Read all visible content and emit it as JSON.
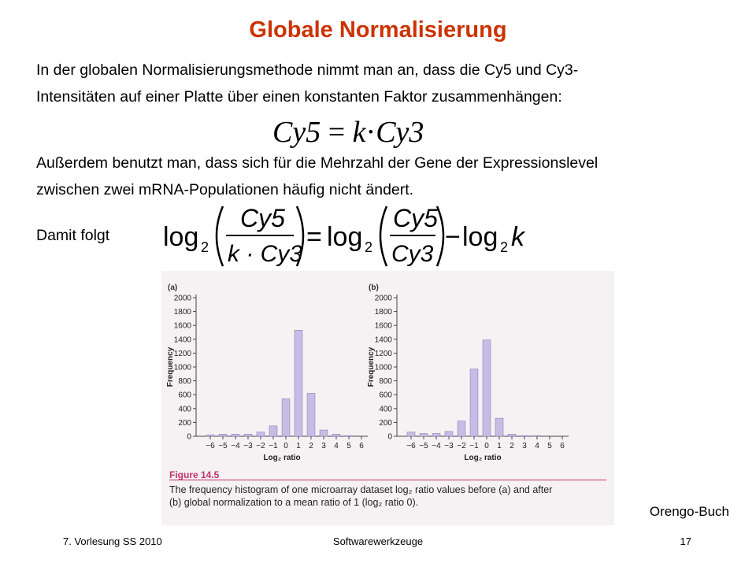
{
  "slide": {
    "title": "Globale Normalisierung",
    "paragraph1_line1": "In der globalen Normalisierungsmethode  nimmt man an, dass die Cy5 und Cy3-",
    "paragraph1_line2": "Intensitäten auf einer Platte über einen konstanten Faktor zusammenhängen:",
    "paragraph2_line1": "Außerdem benutzt man, dass sich für die Mehrzahl der Gene der Expressionslevel",
    "paragraph2_line2": "zwischen zwei mRNA-Populationen häufig nicht ändert.",
    "damit": "Damit folgt",
    "source": "Orengo-Buch"
  },
  "formula1": {
    "lhs": "Cy5",
    "equals": "=",
    "rhs_k": "k",
    "dot": "·",
    "rhs_cy3": "Cy3"
  },
  "formula2": {
    "log": "log",
    "sub2": "2",
    "num": "Cy5",
    "den1": "k · Cy3",
    "den2": "Cy3",
    "equals": "=",
    "minus": "−",
    "k": "k"
  },
  "figure": {
    "title": "Figure 14.5",
    "caption_line1": "The frequency histogram of one microarray dataset log₂ ratio values before (a) and after",
    "caption_line2": "(b) global normalization to a mean ratio of 1 (log₂ ratio 0)."
  },
  "footer": {
    "left": "7. Vorlesung SS 2010",
    "center": "Softwarewerkzeuge",
    "right": "17"
  },
  "chart_data": [
    {
      "type": "bar",
      "panel_label": "(a)",
      "categories": [
        "−6",
        "−5",
        "−4",
        "−3",
        "−2",
        "−1",
        "0",
        "1",
        "2",
        "3",
        "4",
        "5",
        "6"
      ],
      "values": [
        20,
        30,
        30,
        30,
        60,
        150,
        540,
        1530,
        620,
        90,
        30,
        10,
        0
      ],
      "ylabel": "Frequency",
      "xlabel": "Log₂ ratio",
      "yticks": [
        "0",
        "200",
        "400",
        "600",
        "800",
        "1000",
        "1200",
        "1400",
        "1600",
        "1800",
        "2000"
      ],
      "ylim": [
        0,
        2000
      ],
      "bar_color": "#c6bde6"
    },
    {
      "type": "bar",
      "panel_label": "(b)",
      "categories": [
        "−6",
        "−5",
        "−4",
        "−3",
        "−2",
        "−1",
        "0",
        "1",
        "2",
        "3",
        "4",
        "5",
        "6"
      ],
      "values": [
        60,
        40,
        40,
        70,
        220,
        970,
        1390,
        260,
        30,
        10,
        10,
        0,
        0
      ],
      "ylabel": "Frequency",
      "xlabel": "Log₂ ratio",
      "yticks": [
        "0",
        "200",
        "400",
        "600",
        "800",
        "1000",
        "1200",
        "1400",
        "1600",
        "1800",
        "2000"
      ],
      "ylim": [
        0,
        2000
      ],
      "bar_color": "#c6bde6"
    }
  ]
}
